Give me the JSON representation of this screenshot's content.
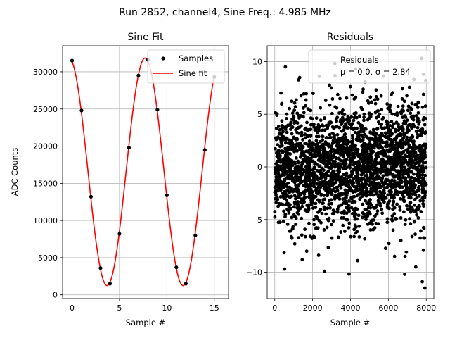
{
  "suptitle": "Run 2852, channel4, Sine Freq.: 4.985 MHz",
  "chart_data": [
    {
      "type": "scatter",
      "title": "Sine Fit",
      "xlabel": "Sample #",
      "ylabel": "ADC Counts",
      "xlim": [
        -1,
        16.5
      ],
      "ylim": [
        -500,
        33500
      ],
      "xticks": [
        0,
        5,
        10,
        15
      ],
      "yticks": [
        0,
        5000,
        10000,
        15000,
        20000,
        25000,
        30000
      ],
      "grid": true,
      "legend": "top-right",
      "series": [
        {
          "name": "Samples",
          "style": "points",
          "color": "#000000",
          "x": [
            0,
            1,
            2,
            3,
            4,
            5,
            6,
            7,
            8,
            9,
            10,
            11,
            12,
            13,
            14,
            15
          ],
          "y": [
            31500,
            24800,
            13200,
            3600,
            1500,
            8200,
            19800,
            29500,
            31600,
            24900,
            13400,
            3700,
            1500,
            8000,
            19500,
            29300
          ]
        },
        {
          "name": "Sine fit",
          "style": "line",
          "color": "#ff0000",
          "function": {
            "offset": 16550,
            "amplitude": 15300,
            "period": 8.02,
            "phase_peak_x": 7.7,
            "x_range": [
              0,
              15
            ]
          }
        }
      ]
    },
    {
      "type": "scatter",
      "title": "Residuals",
      "xlabel": "Sample #",
      "ylabel": "",
      "xlim": [
        -400,
        8400
      ],
      "ylim": [
        -12.5,
        11.5
      ],
      "xticks": [
        0,
        2000,
        4000,
        6000,
        8000
      ],
      "yticks": [
        -10,
        -5,
        0,
        5,
        10
      ],
      "grid": true,
      "legend": "top-right",
      "legend_lines": [
        "Residuals",
        "μ = 0.0, σ = 2.84"
      ],
      "series": [
        {
          "name": "Residuals",
          "style": "points",
          "color": "#000000",
          "distribution": {
            "n": 8000,
            "x_range": [
              0,
              7999
            ],
            "mean": 0.0,
            "sigma": 2.84,
            "clip": [
              -11.5,
              10.5
            ]
          },
          "outliers": [
            {
              "x": 7930,
              "y": -11.5
            },
            {
              "x": 7760,
              "y": 10.3
            },
            {
              "x": 2620,
              "y": -9.9
            },
            {
              "x": 520,
              "y": -9.7
            },
            {
              "x": 7790,
              "y": -10.9
            },
            {
              "x": 7850,
              "y": 8.8
            },
            {
              "x": 2350,
              "y": 8.6
            },
            {
              "x": 560,
              "y": 9.5
            },
            {
              "x": 4270,
              "y": 9.3
            },
            {
              "x": 4380,
              "y": -8.9
            },
            {
              "x": 1450,
              "y": -8.8
            },
            {
              "x": 6880,
              "y": -8.5
            },
            {
              "x": 7350,
              "y": 8.3
            },
            {
              "x": 7970,
              "y": 8.2
            }
          ]
        }
      ]
    }
  ]
}
